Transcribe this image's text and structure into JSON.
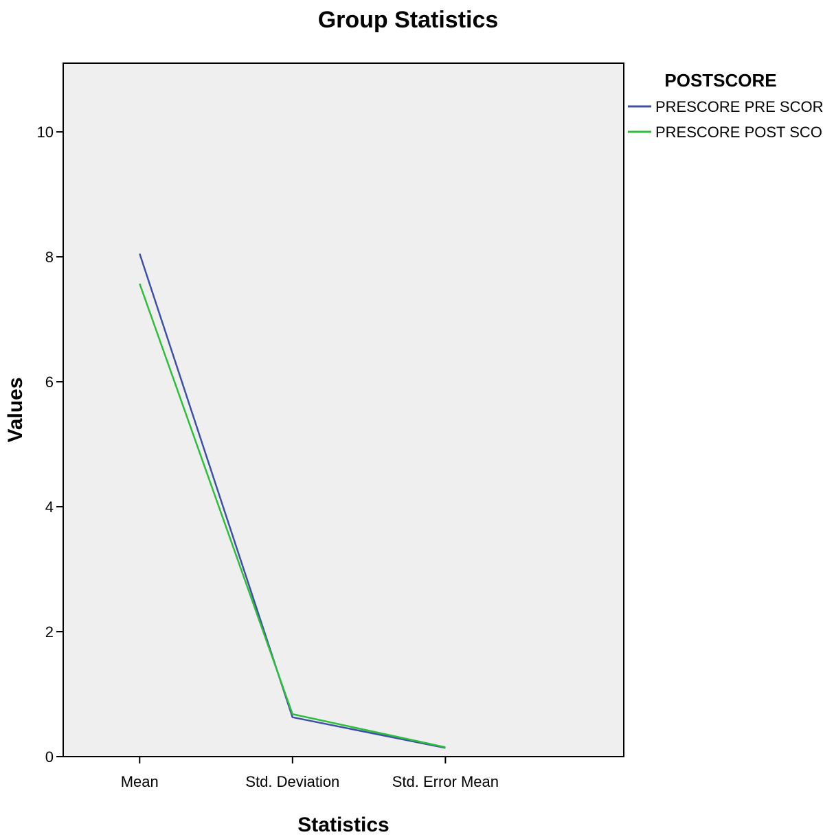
{
  "chart_data": {
    "type": "line",
    "title": "Group Statistics",
    "xlabel": "Statistics",
    "ylabel": "Values",
    "categories": [
      "Mean",
      "Std. Deviation",
      "Std. Error Mean"
    ],
    "ylim": [
      0,
      11.1
    ],
    "yticks": [
      0,
      2,
      4,
      6,
      8,
      10
    ],
    "grid": false,
    "plot_background": "#EFEFEF",
    "legend": {
      "title": "POSTSCORE",
      "placement": "right"
    },
    "series": [
      {
        "name": "PRESCORE PRE SCORE",
        "color": "#3E4FA8",
        "values": [
          8.05,
          0.63,
          0.14
        ]
      },
      {
        "name": "PRESCORE POST SCORE",
        "color": "#2DBE3A",
        "values": [
          7.57,
          0.68,
          0.15
        ]
      }
    ]
  }
}
